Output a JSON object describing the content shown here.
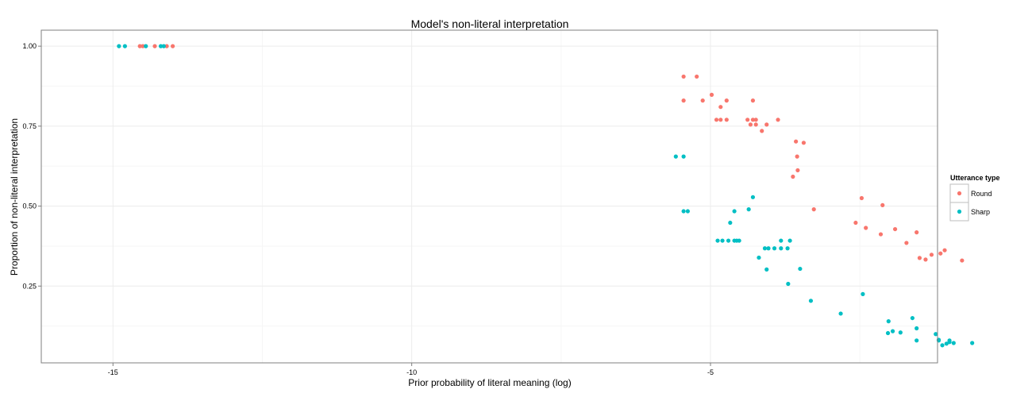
{
  "chart_data": {
    "type": "scatter",
    "title": "Model's non-literal interpretation",
    "xlabel": "Prior probability of literal meaning (log)",
    "ylabel": "Proportion of non-literal interpretation",
    "xlim": [
      -16.2,
      -1.2
    ],
    "ylim": [
      0.01,
      1.05
    ],
    "x_ticks": [
      -15,
      -10,
      -5
    ],
    "x_tick_labels": [
      "-15",
      "-10",
      "-5"
    ],
    "y_ticks": [
      0.25,
      0.5,
      0.75,
      1.0
    ],
    "y_tick_labels": [
      "0.25",
      "0.50",
      "0.75",
      "1.00"
    ],
    "grid": true,
    "legend": {
      "title": "Utterance type",
      "position": "right"
    },
    "series": [
      {
        "name": "Round",
        "color": "#F8766D",
        "points": [
          [
            -14.55,
            1.0
          ],
          [
            -14.5,
            1.0
          ],
          [
            -14.3,
            1.0
          ],
          [
            -14.1,
            1.0
          ],
          [
            -14.0,
            1.0
          ],
          [
            -5.45,
            0.905
          ],
          [
            -5.23,
            0.905
          ],
          [
            -4.98,
            0.848
          ],
          [
            -5.45,
            0.83
          ],
          [
            -5.13,
            0.83
          ],
          [
            -4.73,
            0.83
          ],
          [
            -4.29,
            0.83
          ],
          [
            -4.83,
            0.81
          ],
          [
            -4.9,
            0.77
          ],
          [
            -4.83,
            0.77
          ],
          [
            -4.73,
            0.77
          ],
          [
            -4.38,
            0.77
          ],
          [
            -4.29,
            0.77
          ],
          [
            -4.24,
            0.77
          ],
          [
            -4.06,
            0.755
          ],
          [
            -4.33,
            0.755
          ],
          [
            -4.24,
            0.755
          ],
          [
            -3.87,
            0.77
          ],
          [
            -4.14,
            0.735
          ],
          [
            -3.57,
            0.702
          ],
          [
            -3.44,
            0.698
          ],
          [
            -3.55,
            0.655
          ],
          [
            -3.54,
            0.612
          ],
          [
            -3.62,
            0.592
          ],
          [
            -3.27,
            0.49
          ],
          [
            -2.47,
            0.525
          ],
          [
            -2.12,
            0.503
          ],
          [
            -2.57,
            0.448
          ],
          [
            -2.4,
            0.432
          ],
          [
            -1.91,
            0.428
          ],
          [
            -2.15,
            0.412
          ],
          [
            -1.55,
            0.418
          ],
          [
            -1.72,
            0.385
          ],
          [
            -1.3,
            0.348
          ],
          [
            -1.08,
            0.362
          ],
          [
            -1.15,
            0.352
          ],
          [
            -1.5,
            0.338
          ],
          [
            -1.4,
            0.333
          ],
          [
            -0.79,
            0.33
          ]
        ]
      },
      {
        "name": "Sharp",
        "color": "#00BFC4",
        "points": [
          [
            -14.9,
            1.0
          ],
          [
            -14.8,
            1.0
          ],
          [
            -14.45,
            1.0
          ],
          [
            -14.2,
            1.0
          ],
          [
            -14.15,
            1.0
          ],
          [
            -5.58,
            0.655
          ],
          [
            -5.45,
            0.655
          ],
          [
            -5.45,
            0.484
          ],
          [
            -5.38,
            0.484
          ],
          [
            -4.6,
            0.484
          ],
          [
            -4.36,
            0.49
          ],
          [
            -4.29,
            0.528
          ],
          [
            -4.67,
            0.448
          ],
          [
            -4.88,
            0.392
          ],
          [
            -4.8,
            0.392
          ],
          [
            -4.7,
            0.392
          ],
          [
            -4.6,
            0.392
          ],
          [
            -4.56,
            0.392
          ],
          [
            -4.52,
            0.392
          ],
          [
            -3.82,
            0.392
          ],
          [
            -3.67,
            0.392
          ],
          [
            -4.09,
            0.368
          ],
          [
            -4.03,
            0.368
          ],
          [
            -3.82,
            0.368
          ],
          [
            -3.71,
            0.368
          ],
          [
            -4.19,
            0.339
          ],
          [
            -3.93,
            0.368
          ],
          [
            -4.06,
            0.302
          ],
          [
            -3.5,
            0.304
          ],
          [
            -3.7,
            0.257
          ],
          [
            -3.32,
            0.204
          ],
          [
            -2.82,
            0.164
          ],
          [
            -2.45,
            0.225
          ],
          [
            -2.02,
            0.14
          ],
          [
            -1.82,
            0.105
          ],
          [
            -2.03,
            0.103
          ],
          [
            -1.95,
            0.109
          ],
          [
            -1.62,
            0.15
          ],
          [
            -1.55,
            0.118
          ],
          [
            -1.23,
            0.1
          ],
          [
            -1.18,
            0.082
          ],
          [
            -1.0,
            0.08
          ],
          [
            -1.12,
            0.065
          ],
          [
            -1.18,
            0.08
          ],
          [
            -1.55,
            0.08
          ],
          [
            -0.93,
            0.072
          ],
          [
            -1.05,
            0.07
          ],
          [
            -1.0,
            0.075
          ],
          [
            -0.62,
            0.072
          ]
        ]
      }
    ]
  }
}
